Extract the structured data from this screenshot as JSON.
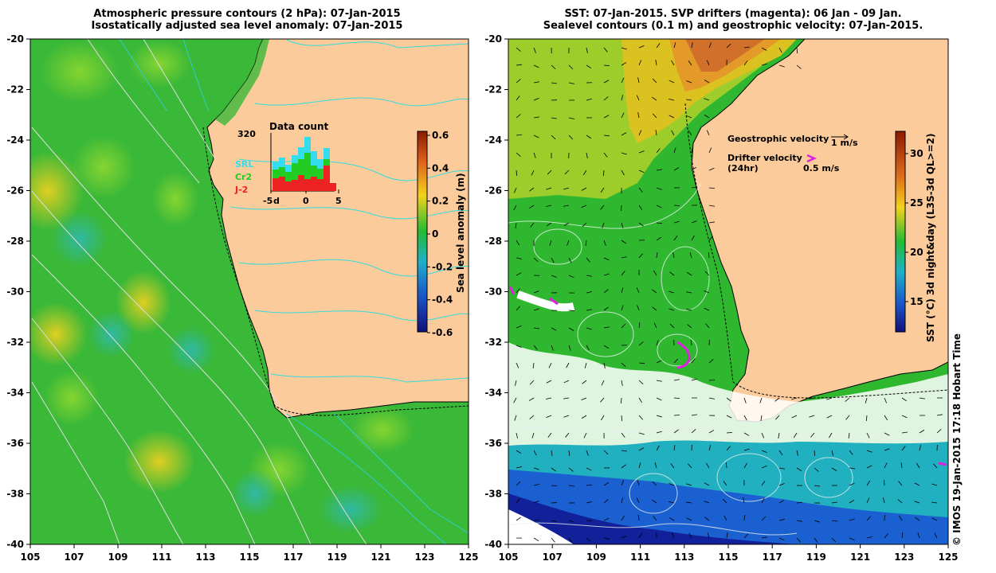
{
  "left_panel": {
    "title_line1": "Atmospheric pressure contours (2 hPa): 07-Jan-2015",
    "title_line2": "Isostatically adjusted sea level anomaly: 07-Jan-2015",
    "y_ticks": [
      "-20",
      "-22",
      "-24",
      "-26",
      "-28",
      "-30",
      "-32",
      "-34",
      "-36",
      "-38",
      "-40"
    ],
    "x_ticks": [
      "105",
      "107",
      "109",
      "111",
      "113",
      "115",
      "117",
      "119",
      "121",
      "123",
      "125"
    ],
    "inset": {
      "title": "Data count",
      "max_label": "320",
      "x_ticks": [
        "-5",
        "0",
        "5"
      ],
      "x_tick_extra": "d",
      "legend": [
        {
          "label": "SRL",
          "color": "#33ddee"
        },
        {
          "label": "Cr2",
          "color": "#22cc22"
        },
        {
          "label": "J-2",
          "color": "#ee2222"
        }
      ]
    },
    "colorbar": {
      "label": "Sea level anomaly (m)",
      "ticks": [
        "0.6",
        "0.4",
        "0.2",
        "0",
        "-0.2",
        "-0.4",
        "-0.6"
      ]
    }
  },
  "right_panel": {
    "title_line1": "SST: 07-Jan-2015. SVP drifters (magenta): 06 Jan - 09 Jan.",
    "title_line2": "Sealevel contours (0.1 m) and geostrophic velocity: 07-Jan-2015.",
    "y_ticks": [
      "-20",
      "-22",
      "-24",
      "-26",
      "-28",
      "-30",
      "-32",
      "-34",
      "-36",
      "-38",
      "-40"
    ],
    "x_ticks": [
      "105",
      "107",
      "109",
      "111",
      "113",
      "115",
      "117",
      "119",
      "121",
      "123",
      "125"
    ],
    "geostrophic_label": "Geostrophic velocity",
    "geostrophic_scale": "1 m/s",
    "drifter_label": "Drifter velocity",
    "drifter_sub": "(24hr)",
    "drifter_scale": "0.5 m/s",
    "colorbar": {
      "label": "SST (°C) 3d night&day (L3S-3d QL>=2)",
      "ticks": [
        "30",
        "25",
        "20",
        "15"
      ]
    },
    "credit": "© IMOS 19-Jan-2015 17:18 Hobart Time"
  }
}
